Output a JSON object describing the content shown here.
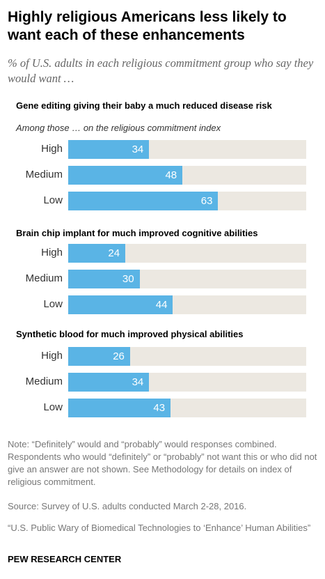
{
  "title": "Highly religious Americans less likely to want each of these enhancements",
  "subtitle": "% of U.S. adults in each religious commitment group who say they would want …",
  "group_note": "Among those … on the religious commitment index",
  "note": "Note: “Definitely” would and “probably” would responses combined. Respondents who would “definitely” or “probably” not want this or who did not give an answer are not shown. See Methodology for details on index of religious commitment.",
  "source": "Source: Survey of U.S. adults conducted March 2-28, 2016.",
  "report": "“U.S. Public Wary of Biomedical Technologies to ‘Enhance’ Human Abilities”",
  "brand": "PEW RESEARCH CENTER",
  "colors": {
    "bar": "#5ab4e5",
    "track": "#ece8e1"
  },
  "chart_data": [
    {
      "type": "bar",
      "title": "Gene editing giving their baby a much reduced disease risk",
      "categories": [
        "High",
        "Medium",
        "Low"
      ],
      "values": [
        34,
        48,
        63
      ],
      "xlim": [
        0,
        100
      ]
    },
    {
      "type": "bar",
      "title": "Brain chip implant for much improved cognitive abilities",
      "categories": [
        "High",
        "Medium",
        "Low"
      ],
      "values": [
        24,
        30,
        44
      ],
      "xlim": [
        0,
        100
      ]
    },
    {
      "type": "bar",
      "title": "Synthetic blood for much improved physical abilities",
      "categories": [
        "High",
        "Medium",
        "Low"
      ],
      "values": [
        26,
        34,
        43
      ],
      "xlim": [
        0,
        100
      ]
    }
  ]
}
